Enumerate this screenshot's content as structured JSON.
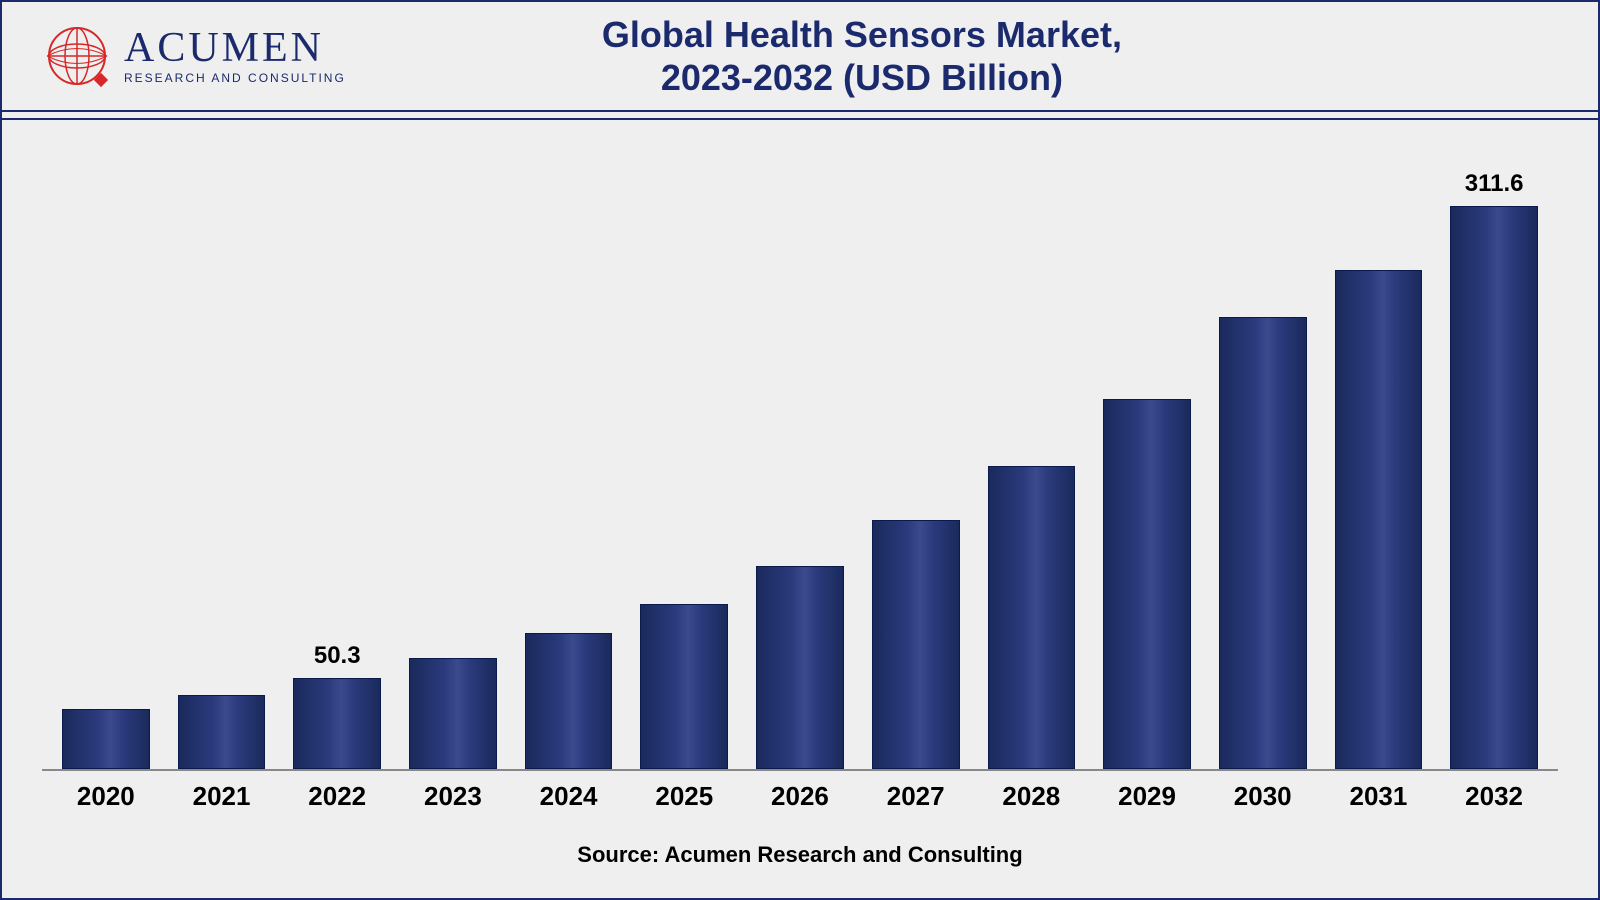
{
  "logo": {
    "company_main": "ACUMEN",
    "company_sub": "RESEARCH AND CONSULTING",
    "globe_color": "#d62828",
    "text_color": "#1a2a6c"
  },
  "chart": {
    "type": "bar",
    "title_line1": "Global Health Sensors Market,",
    "title_line2": "2023-2032 (USD Billion)",
    "title_fontsize": 36,
    "title_color": "#1a2a6c",
    "categories": [
      "2020",
      "2021",
      "2022",
      "2023",
      "2024",
      "2025",
      "2026",
      "2027",
      "2028",
      "2029",
      "2030",
      "2031",
      "2032"
    ],
    "values": [
      33,
      41,
      50.3,
      61,
      75,
      91,
      112,
      137,
      167,
      204,
      249,
      275,
      311.6
    ],
    "value_labels": [
      "",
      "",
      "50.3",
      "",
      "",
      "",
      "",
      "",
      "",
      "",
      "",
      "",
      "311.6"
    ],
    "ymax": 330,
    "bar_gradient_start": "#1a2a5c",
    "bar_gradient_mid": "#3a4a8c",
    "bar_gradient_end": "#1a2a5c",
    "bar_border": "#0a1a4c",
    "axis_color": "#888888",
    "background_color": "#efefef",
    "border_color": "#1a2a6c",
    "x_label_fontsize": 26,
    "value_label_fontsize": 24,
    "source": "Source: Acumen Research and Consulting",
    "source_fontsize": 22
  }
}
